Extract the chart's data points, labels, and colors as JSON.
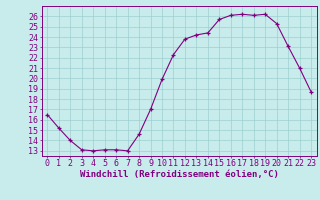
{
  "x": [
    0,
    1,
    2,
    3,
    4,
    5,
    6,
    7,
    8,
    9,
    10,
    11,
    12,
    13,
    14,
    15,
    16,
    17,
    18,
    19,
    20,
    21,
    22,
    23
  ],
  "y": [
    16.5,
    15.2,
    14.0,
    13.1,
    13.0,
    13.1,
    13.1,
    13.0,
    14.6,
    17.0,
    19.9,
    22.3,
    23.8,
    24.2,
    24.4,
    25.7,
    26.1,
    26.2,
    26.1,
    26.2,
    25.3,
    23.1,
    21.0,
    18.7
  ],
  "xlabel": "Windchill (Refroidissement éolien,°C)",
  "ylim_min": 12.5,
  "ylim_max": 27.0,
  "xlim_min": -0.5,
  "xlim_max": 23.5,
  "yticks": [
    13,
    14,
    15,
    16,
    17,
    18,
    19,
    20,
    21,
    22,
    23,
    24,
    25,
    26
  ],
  "xticks": [
    0,
    1,
    2,
    3,
    4,
    5,
    6,
    7,
    8,
    9,
    10,
    11,
    12,
    13,
    14,
    15,
    16,
    17,
    18,
    19,
    20,
    21,
    22,
    23
  ],
  "line_color": "#800080",
  "marker_color": "#800080",
  "bg_color": "#c8ecec",
  "grid_color": "#9ecece",
  "axis_color": "#800080",
  "tick_color": "#800080",
  "label_color": "#800080",
  "font_size_xlabel": 6.5,
  "font_size_ticks": 6.0
}
